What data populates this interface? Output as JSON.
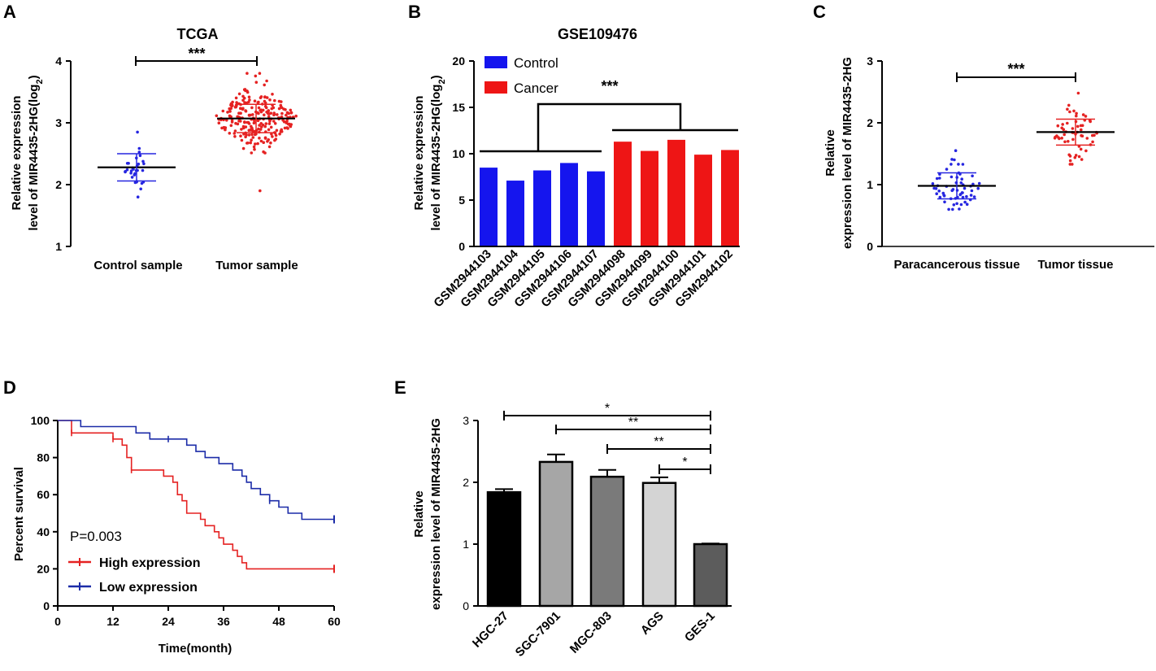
{
  "panels": {
    "A": {
      "label": "A"
    },
    "B": {
      "label": "B"
    },
    "C": {
      "label": "C"
    },
    "D": {
      "label": "D"
    },
    "E": {
      "label": "E"
    }
  },
  "chart_data": [
    {
      "panel": "A",
      "type": "scatter",
      "title": "TCGA",
      "ylabel_line1": "Relative expression",
      "ylabel_line2": "level of MIR4435-2HG(log",
      "ylabel_sub": "2",
      "ylabel_end": ")",
      "categories": [
        "Control sample",
        "Tumor sample"
      ],
      "ylim": [
        1,
        4
      ],
      "yticks": [
        1,
        2,
        3,
        4
      ],
      "groups": [
        {
          "name": "Control sample",
          "color": "#2626e0",
          "n": 32,
          "mean": 2.28,
          "sd": 0.22,
          "min": 1.8,
          "max": 2.85
        },
        {
          "name": "Tumor sample",
          "color": "#e52222",
          "n": 260,
          "mean": 3.07,
          "sd": 0.23,
          "min": 1.9,
          "max": 3.8
        }
      ],
      "significance": "***"
    },
    {
      "panel": "B",
      "type": "bar",
      "title": "GSE109476",
      "ylabel_line1": "Relative expression",
      "ylabel_line2": "level of MIR4435-2HG(log",
      "ylabel_sub": "2",
      "ylabel_end": ")",
      "categories": [
        "GSM2944103",
        "GSM2944104",
        "GSM2944105",
        "GSM2944106",
        "GSM2944107",
        "GSM2944098",
        "GSM2944099",
        "GSM2944100",
        "GSM2944101",
        "GSM2944102"
      ],
      "values": [
        8.5,
        7.1,
        8.2,
        9.0,
        8.1,
        11.3,
        10.3,
        11.5,
        9.9,
        10.4
      ],
      "groups": [
        "Control",
        "Control",
        "Control",
        "Control",
        "Control",
        "Cancer",
        "Cancer",
        "Cancer",
        "Cancer",
        "Cancer"
      ],
      "legend": [
        {
          "name": "Control",
          "color": "#1515ee"
        },
        {
          "name": "Cancer",
          "color": "#ee1515"
        }
      ],
      "ylim": [
        0,
        20
      ],
      "yticks": [
        0,
        5,
        10,
        15,
        20
      ],
      "significance": "***"
    },
    {
      "panel": "C",
      "type": "scatter",
      "title": "",
      "ylabel_line1": "Relative",
      "ylabel_line2": "expression level of MIR4435-2HG",
      "categories": [
        "Paracancerous tissue",
        "Tumor tissue"
      ],
      "ylim": [
        0,
        3
      ],
      "yticks": [
        0,
        1,
        2,
        3
      ],
      "groups": [
        {
          "name": "Paracancerous tissue",
          "color": "#2626e0",
          "n": 60,
          "mean": 0.98,
          "sd": 0.21,
          "min": 0.6,
          "max": 1.55
        },
        {
          "name": "Tumor tissue",
          "color": "#e52222",
          "n": 60,
          "mean": 1.85,
          "sd": 0.21,
          "min": 1.33,
          "max": 2.48
        }
      ],
      "significance": "***"
    },
    {
      "panel": "D",
      "type": "line",
      "title": "",
      "xlabel": "Time(month)",
      "ylabel": "Percent survival",
      "xlim": [
        0,
        60
      ],
      "ylim": [
        0,
        100
      ],
      "xticks": [
        0,
        12,
        24,
        36,
        48,
        60
      ],
      "yticks": [
        0,
        20,
        40,
        60,
        80,
        100
      ],
      "annotation": "P=0.003",
      "series": [
        {
          "name": "High expression",
          "color": "#e52222",
          "x": [
            0,
            3,
            3,
            12,
            12,
            14,
            14,
            15,
            15,
            16,
            16,
            23,
            23,
            25,
            25,
            26,
            26,
            27,
            27,
            28,
            28,
            31,
            31,
            32,
            32,
            34,
            34,
            35,
            35,
            36,
            36,
            38,
            38,
            39,
            39,
            40,
            40,
            41,
            41,
            42,
            42,
            43,
            43,
            60
          ],
          "y": [
            100,
            100,
            93.3,
            93.3,
            90,
            90,
            86.7,
            86.7,
            80,
            80,
            73.3,
            73.3,
            70,
            70,
            66.7,
            66.7,
            60,
            60,
            56.7,
            56.7,
            50,
            50,
            46.7,
            46.7,
            43.3,
            43.3,
            40,
            40,
            36.7,
            36.7,
            33.3,
            33.3,
            30,
            30,
            26.7,
            26.7,
            23.3,
            23.3,
            20,
            20,
            20,
            20,
            20,
            20
          ]
        },
        {
          "name": "Low expression",
          "color": "#1c2ca8",
          "x": [
            0,
            5,
            5,
            7,
            7,
            17,
            17,
            20,
            20,
            24,
            24,
            28,
            28,
            30,
            30,
            32,
            32,
            33,
            33,
            35,
            35,
            38,
            38,
            39,
            39,
            40,
            40,
            41,
            41,
            42,
            42,
            44,
            44,
            46,
            46,
            48,
            48,
            50,
            50,
            53,
            53,
            54,
            54,
            60
          ],
          "y": [
            100,
            100,
            96.7,
            96.7,
            96.7,
            96.7,
            93.3,
            93.3,
            90,
            90,
            90,
            90,
            86.7,
            86.7,
            83.3,
            83.3,
            80,
            80,
            80,
            80,
            76.7,
            76.7,
            73.3,
            73.3,
            73.3,
            73.3,
            70,
            70,
            66.7,
            66.7,
            63.3,
            63.3,
            60,
            60,
            56.7,
            56.7,
            53.3,
            53.3,
            50,
            50,
            46.7,
            46.7,
            46.7,
            46.7
          ]
        }
      ]
    },
    {
      "panel": "E",
      "type": "bar",
      "title": "",
      "ylabel_line1": "Relative",
      "ylabel_line2": "expression level of MIR4435-2HG",
      "categories": [
        "HGC-27",
        "SGC-7901",
        "MGC-803",
        "AGS",
        "GES-1"
      ],
      "values": [
        1.84,
        2.33,
        2.09,
        1.99,
        1.0
      ],
      "errors": [
        0.05,
        0.12,
        0.11,
        0.09,
        0.01
      ],
      "colors": [
        "#000000",
        "#a6a6a6",
        "#7a7a7a",
        "#d4d4d4",
        "#5c5c5c"
      ],
      "ylim": [
        0,
        3
      ],
      "yticks": [
        0,
        1,
        2,
        3
      ],
      "comparisons": [
        {
          "from": "HGC-27",
          "to": "GES-1",
          "label": "*"
        },
        {
          "from": "SGC-7901",
          "to": "GES-1",
          "label": "**"
        },
        {
          "from": "MGC-803",
          "to": "GES-1",
          "label": "**"
        },
        {
          "from": "AGS",
          "to": "GES-1",
          "label": "*"
        }
      ]
    }
  ]
}
